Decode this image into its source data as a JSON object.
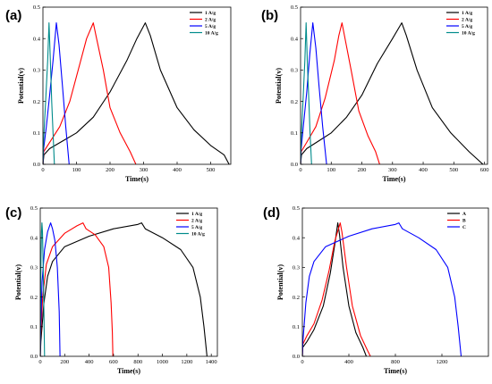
{
  "chart_data": [
    {
      "panel_label": "(a)",
      "type": "line",
      "xlabel": "Time(s)",
      "ylabel": "Potential(v)",
      "xlim": [
        0,
        560
      ],
      "ylim": [
        0,
        0.5
      ],
      "xticks": [
        0,
        100,
        200,
        300,
        400,
        500
      ],
      "yticks": [
        0.0,
        0.1,
        0.2,
        0.3,
        0.4,
        0.5
      ],
      "legend_position": "top-right",
      "series": [
        {
          "name": "1 A/g",
          "color": "#000000",
          "points": [
            [
              0,
              0
            ],
            [
              3,
              0.03
            ],
            [
              20,
              0.05
            ],
            [
              60,
              0.075
            ],
            [
              100,
              0.1
            ],
            [
              150,
              0.15
            ],
            [
              200,
              0.23
            ],
            [
              250,
              0.33
            ],
            [
              280,
              0.4
            ],
            [
              305,
              0.45
            ],
            [
              320,
              0.41
            ],
            [
              350,
              0.3
            ],
            [
              400,
              0.18
            ],
            [
              450,
              0.11
            ],
            [
              500,
              0.06
            ],
            [
              540,
              0.03
            ],
            [
              555,
              0
            ]
          ]
        },
        {
          "name": "2 A/g",
          "color": "#ff0000",
          "points": [
            [
              0,
              0
            ],
            [
              2,
              0.04
            ],
            [
              20,
              0.07
            ],
            [
              50,
              0.12
            ],
            [
              80,
              0.2
            ],
            [
              110,
              0.32
            ],
            [
              130,
              0.4
            ],
            [
              150,
              0.45
            ],
            [
              160,
              0.4
            ],
            [
              180,
              0.3
            ],
            [
              200,
              0.18
            ],
            [
              230,
              0.1
            ],
            [
              260,
              0.04
            ],
            [
              277,
              0
            ]
          ]
        },
        {
          "name": "5 A/g",
          "color": "#0000ff",
          "points": [
            [
              0,
              0
            ],
            [
              2,
              0.05
            ],
            [
              10,
              0.12
            ],
            [
              20,
              0.22
            ],
            [
              30,
              0.33
            ],
            [
              40,
              0.45
            ],
            [
              48,
              0.38
            ],
            [
              58,
              0.25
            ],
            [
              68,
              0.12
            ],
            [
              78,
              0
            ]
          ]
        },
        {
          "name": "10 A/g",
          "color": "#008b8b",
          "points": [
            [
              0,
              0
            ],
            [
              2,
              0.08
            ],
            [
              8,
              0.2
            ],
            [
              14,
              0.33
            ],
            [
              18,
              0.45
            ],
            [
              22,
              0.33
            ],
            [
              26,
              0.2
            ],
            [
              30,
              0.1
            ],
            [
              34,
              0
            ]
          ]
        }
      ]
    },
    {
      "panel_label": "(b)",
      "type": "line",
      "xlabel": "Time(s)",
      "ylabel": "Potential(v)",
      "xlim": [
        0,
        610
      ],
      "ylim": [
        0,
        0.5
      ],
      "xticks": [
        0,
        100,
        200,
        300,
        400,
        500,
        600
      ],
      "yticks": [
        0.0,
        0.1,
        0.2,
        0.3,
        0.4,
        0.5
      ],
      "legend_position": "top-right",
      "series": [
        {
          "name": "1 A/g",
          "color": "#000000",
          "points": [
            [
              0,
              0
            ],
            [
              3,
              0.03
            ],
            [
              20,
              0.05
            ],
            [
              60,
              0.075
            ],
            [
              100,
              0.1
            ],
            [
              150,
              0.15
            ],
            [
              200,
              0.22
            ],
            [
              250,
              0.32
            ],
            [
              300,
              0.4
            ],
            [
              330,
              0.45
            ],
            [
              345,
              0.41
            ],
            [
              380,
              0.3
            ],
            [
              430,
              0.18
            ],
            [
              490,
              0.1
            ],
            [
              550,
              0.04
            ],
            [
              595,
              0
            ]
          ]
        },
        {
          "name": "2 A/g",
          "color": "#ff0000",
          "points": [
            [
              0,
              0
            ],
            [
              2,
              0.04
            ],
            [
              20,
              0.07
            ],
            [
              50,
              0.12
            ],
            [
              80,
              0.21
            ],
            [
              110,
              0.33
            ],
            [
              125,
              0.41
            ],
            [
              135,
              0.45
            ],
            [
              145,
              0.4
            ],
            [
              165,
              0.3
            ],
            [
              190,
              0.17
            ],
            [
              220,
              0.09
            ],
            [
              245,
              0.04
            ],
            [
              258,
              0
            ]
          ]
        },
        {
          "name": "5 A/g",
          "color": "#0000ff",
          "points": [
            [
              0,
              0
            ],
            [
              2,
              0.05
            ],
            [
              10,
              0.13
            ],
            [
              20,
              0.23
            ],
            [
              30,
              0.35
            ],
            [
              40,
              0.45
            ],
            [
              50,
              0.37
            ],
            [
              60,
              0.25
            ],
            [
              72,
              0.12
            ],
            [
              85,
              0
            ]
          ]
        },
        {
          "name": "10 A/g",
          "color": "#008b8b",
          "points": [
            [
              0,
              0
            ],
            [
              2,
              0.08
            ],
            [
              8,
              0.2
            ],
            [
              14,
              0.33
            ],
            [
              18,
              0.45
            ],
            [
              22,
              0.33
            ],
            [
              27,
              0.2
            ],
            [
              31,
              0.1
            ],
            [
              36,
              0
            ]
          ]
        }
      ]
    },
    {
      "panel_label": "(c)",
      "type": "line",
      "xlabel": "Time(s)",
      "ylabel": "Potential(v)",
      "xlim": [
        0,
        1450
      ],
      "ylim": [
        0,
        0.5
      ],
      "xticks": [
        0,
        200,
        400,
        600,
        800,
        1000,
        1200,
        1400
      ],
      "yticks": [
        0.0,
        0.1,
        0.2,
        0.3,
        0.4,
        0.5
      ],
      "legend_position": "top-right",
      "series": [
        {
          "name": "1 A/g",
          "color": "#000000",
          "points": [
            [
              0,
              0
            ],
            [
              5,
              0.05
            ],
            [
              30,
              0.18
            ],
            [
              60,
              0.27
            ],
            [
              100,
              0.32
            ],
            [
              200,
              0.37
            ],
            [
              400,
              0.405
            ],
            [
              600,
              0.43
            ],
            [
              800,
              0.445
            ],
            [
              830,
              0.45
            ],
            [
              860,
              0.43
            ],
            [
              1000,
              0.4
            ],
            [
              1150,
              0.36
            ],
            [
              1250,
              0.3
            ],
            [
              1310,
              0.2
            ],
            [
              1340,
              0.1
            ],
            [
              1365,
              0
            ]
          ]
        },
        {
          "name": "2 A/g",
          "color": "#ff0000",
          "points": [
            [
              0,
              0
            ],
            [
              3,
              0.06
            ],
            [
              20,
              0.2
            ],
            [
              50,
              0.31
            ],
            [
              100,
              0.37
            ],
            [
              200,
              0.415
            ],
            [
              300,
              0.44
            ],
            [
              350,
              0.45
            ],
            [
              375,
              0.43
            ],
            [
              450,
              0.41
            ],
            [
              520,
              0.37
            ],
            [
              560,
              0.3
            ],
            [
              580,
              0.18
            ],
            [
              590,
              0.08
            ],
            [
              595,
              0
            ]
          ]
        },
        {
          "name": "5 A/g",
          "color": "#0000ff",
          "points": [
            [
              0,
              0
            ],
            [
              3,
              0.08
            ],
            [
              15,
              0.25
            ],
            [
              35,
              0.36
            ],
            [
              60,
              0.42
            ],
            [
              85,
              0.45
            ],
            [
              100,
              0.43
            ],
            [
              120,
              0.39
            ],
            [
              140,
              0.3
            ],
            [
              155,
              0.15
            ],
            [
              162,
              0
            ]
          ]
        },
        {
          "name": "10 A/g",
          "color": "#008b8b",
          "points": [
            [
              0,
              0
            ],
            [
              2,
              0.15
            ],
            [
              6,
              0.33
            ],
            [
              10,
              0.42
            ],
            [
              14,
              0.45
            ],
            [
              18,
              0.42
            ],
            [
              24,
              0.3
            ],
            [
              30,
              0.15
            ],
            [
              35,
              0
            ]
          ]
        }
      ]
    },
    {
      "panel_label": "(d)",
      "type": "line",
      "xlabel": "Time(s)",
      "ylabel": "Potential(v)",
      "xlim": [
        0,
        1600
      ],
      "ylim": [
        0,
        0.5
      ],
      "xticks": [
        0,
        400,
        800,
        1200
      ],
      "yticks": [
        0.0,
        0.1,
        0.2,
        0.3,
        0.4,
        0.5
      ],
      "legend_position": "top-right",
      "series": [
        {
          "name": "A",
          "color": "#000000",
          "points": [
            [
              0,
              0
            ],
            [
              3,
              0.03
            ],
            [
              40,
              0.05
            ],
            [
              100,
              0.09
            ],
            [
              180,
              0.17
            ],
            [
              240,
              0.28
            ],
            [
              280,
              0.38
            ],
            [
              305,
              0.45
            ],
            [
              320,
              0.41
            ],
            [
              350,
              0.3
            ],
            [
              400,
              0.17
            ],
            [
              460,
              0.08
            ],
            [
              520,
              0.03
            ],
            [
              550,
              0
            ]
          ]
        },
        {
          "name": "B",
          "color": "#ff0000",
          "points": [
            [
              0,
              0
            ],
            [
              3,
              0.04
            ],
            [
              40,
              0.07
            ],
            [
              100,
              0.11
            ],
            [
              170,
              0.19
            ],
            [
              230,
              0.29
            ],
            [
              280,
              0.39
            ],
            [
              325,
              0.45
            ],
            [
              340,
              0.42
            ],
            [
              380,
              0.3
            ],
            [
              430,
              0.17
            ],
            [
              500,
              0.07
            ],
            [
              560,
              0.02
            ],
            [
              585,
              0
            ]
          ]
        },
        {
          "name": "C",
          "color": "#0000ff",
          "points": [
            [
              0,
              0
            ],
            [
              5,
              0.05
            ],
            [
              30,
              0.18
            ],
            [
              60,
              0.27
            ],
            [
              100,
              0.32
            ],
            [
              200,
              0.37
            ],
            [
              400,
              0.405
            ],
            [
              600,
              0.43
            ],
            [
              800,
              0.445
            ],
            [
              830,
              0.45
            ],
            [
              860,
              0.43
            ],
            [
              1000,
              0.4
            ],
            [
              1150,
              0.36
            ],
            [
              1250,
              0.3
            ],
            [
              1310,
              0.2
            ],
            [
              1340,
              0.1
            ],
            [
              1365,
              0
            ]
          ]
        }
      ]
    }
  ]
}
